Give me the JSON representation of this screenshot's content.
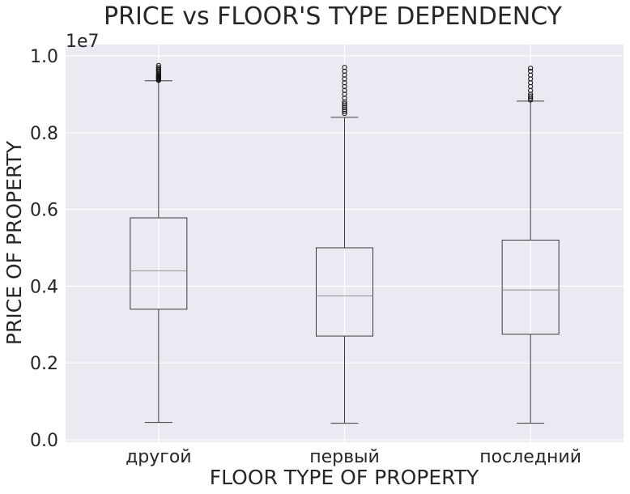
{
  "chart_data": {
    "type": "box",
    "title": "PRICE vs FLOOR'S TYPE DEPENDENCY",
    "xlabel": "FLOOR TYPE OF PROPERTY",
    "ylabel": "PRICE OF PROPERTY",
    "y_offset_label": "1e7",
    "ylim": [
      0.0,
      1.0
    ],
    "yticks": [
      0.0,
      0.2,
      0.4,
      0.6,
      0.8,
      1.0
    ],
    "ytick_labels": [
      "0.0",
      "0.2",
      "0.4",
      "0.6",
      "0.8",
      "1.0"
    ],
    "grid": true,
    "categories": [
      "другой",
      "первый",
      "последний"
    ],
    "boxes": [
      {
        "category": "другой",
        "whisker_low": 0.045,
        "q1": 0.34,
        "median": 0.44,
        "q3": 0.578,
        "whisker_high": 0.935,
        "outliers": [
          0.936,
          0.938,
          0.94,
          0.942,
          0.944,
          0.946,
          0.948,
          0.95,
          0.953,
          0.956,
          0.96,
          0.963,
          0.966,
          0.97,
          0.975
        ]
      },
      {
        "category": "первый",
        "whisker_low": 0.043,
        "q1": 0.27,
        "median": 0.375,
        "q3": 0.5,
        "whisker_high": 0.84,
        "outliers": [
          0.85,
          0.855,
          0.86,
          0.865,
          0.87,
          0.875,
          0.88,
          0.89,
          0.9,
          0.91,
          0.92,
          0.93,
          0.94,
          0.95,
          0.96,
          0.97
        ]
      },
      {
        "category": "последний",
        "whisker_low": 0.043,
        "q1": 0.275,
        "median": 0.39,
        "q3": 0.52,
        "whisker_high": 0.882,
        "outliers": [
          0.885,
          0.89,
          0.895,
          0.9,
          0.91,
          0.92,
          0.93,
          0.94,
          0.95,
          0.96,
          0.968
        ]
      }
    ],
    "colors": {
      "plot_bg": "#eaeaf2",
      "grid": "#ffffff",
      "box": "#3a3a3a",
      "median": "#a0a0a0",
      "text": "#262626"
    }
  }
}
